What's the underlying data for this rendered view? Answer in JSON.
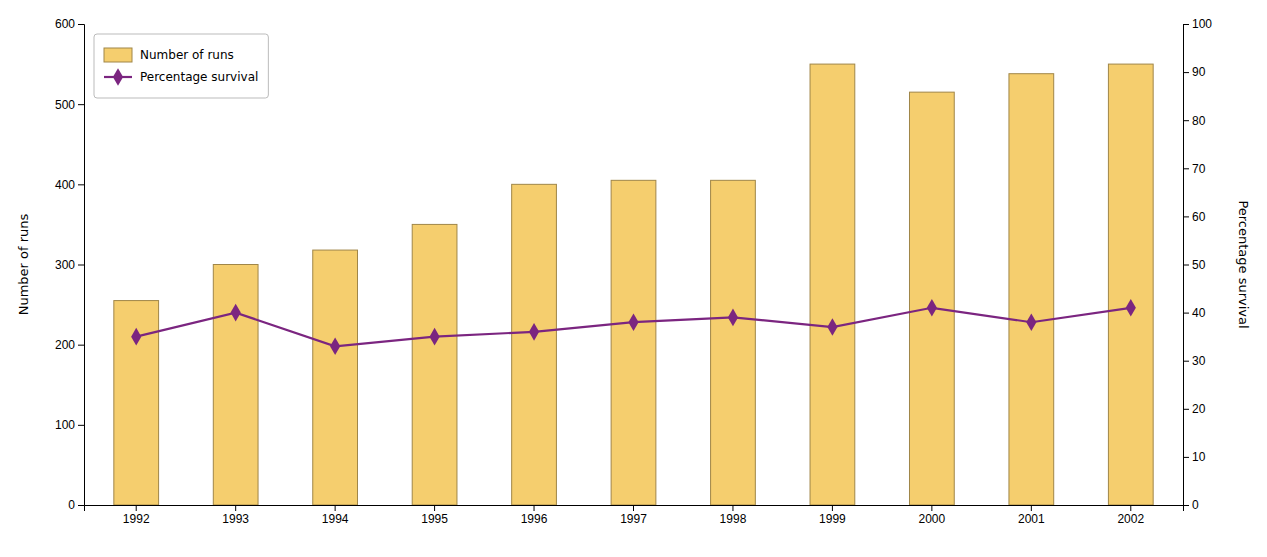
{
  "chart_data": {
    "type": "bar",
    "categories": [
      "1992",
      "1993",
      "1994",
      "1995",
      "1996",
      "1997",
      "1998",
      "1999",
      "2000",
      "2001",
      "2002"
    ],
    "series": [
      {
        "name": "Number of runs",
        "type": "bar",
        "color": "#F5CE6E",
        "values": [
          255,
          300,
          318,
          350,
          400,
          405,
          405,
          550,
          515,
          538,
          550
        ]
      },
      {
        "name": "Percentage survival",
        "type": "line",
        "axis": "y2",
        "color": "#7B2580",
        "marker": "diamond",
        "values": [
          35,
          40,
          33,
          35,
          36,
          38,
          39,
          37,
          41,
          38,
          41
        ]
      }
    ],
    "ylabel": "Number of runs",
    "y2label": "Percentage survival",
    "ylim": [
      0,
      600
    ],
    "yticks": [
      0,
      100,
      200,
      300,
      400,
      500,
      600
    ],
    "y2lim": [
      0,
      100
    ],
    "y2ticks": [
      0,
      10,
      20,
      30,
      40,
      50,
      60,
      70,
      80,
      90,
      100
    ],
    "grid": false,
    "legend": "upper left"
  }
}
